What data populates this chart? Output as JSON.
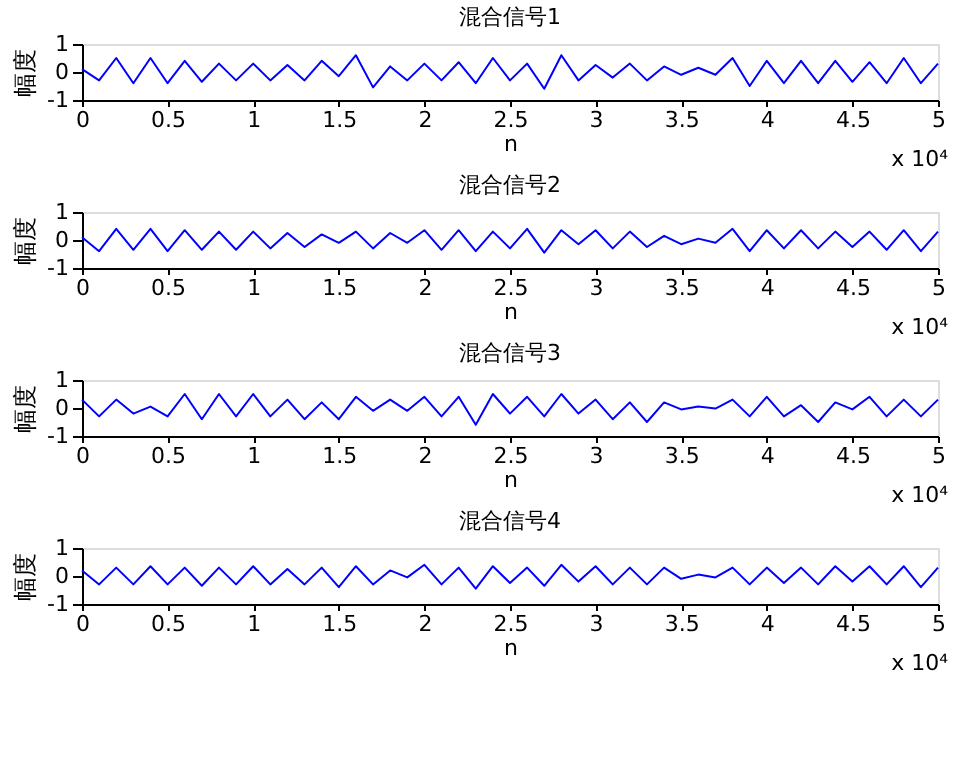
{
  "chart_data": [
    {
      "type": "line",
      "title": "混合信号1",
      "xlabel": "n",
      "ylabel": "幅度",
      "annotations": [
        "x 10⁴"
      ],
      "xlim": [
        0,
        5
      ],
      "xticks": [
        0,
        0.5,
        1,
        1.5,
        2,
        2.5,
        3,
        3.5,
        4,
        4.5,
        5
      ],
      "ylim": [
        -1,
        1
      ],
      "yticks": [
        -1,
        0,
        1
      ],
      "grid": false,
      "x": [
        0,
        0.1,
        0.2,
        0.3,
        0.4,
        0.5,
        0.6,
        0.7,
        0.8,
        0.9,
        1,
        1.1,
        1.2,
        1.3,
        1.4,
        1.5,
        1.6,
        1.7,
        1.8,
        1.9,
        2,
        2.1,
        2.2,
        2.3,
        2.4,
        2.5,
        2.6,
        2.7,
        2.8,
        2.9,
        3,
        3.1,
        3.2,
        3.3,
        3.4,
        3.5,
        3.6,
        3.7,
        3.8,
        3.9,
        4,
        4.1,
        4.2,
        4.3,
        4.4,
        4.5,
        4.6,
        4.7,
        4.8,
        4.9,
        5
      ],
      "series": [
        {
          "color": "#0000ff",
          "values": [
            0.1,
            -0.3,
            0.5,
            -0.4,
            0.5,
            -0.4,
            0.4,
            -0.35,
            0.3,
            -0.3,
            0.3,
            -0.3,
            0.25,
            -0.3,
            0.4,
            -0.15,
            0.6,
            -0.55,
            0.2,
            -0.3,
            0.3,
            -0.3,
            0.35,
            -0.4,
            0.5,
            -0.3,
            0.3,
            -0.6,
            0.6,
            -0.3,
            0.25,
            -0.2,
            0.3,
            -0.3,
            0.2,
            -0.1,
            0.15,
            -0.1,
            0.5,
            -0.5,
            0.4,
            -0.4,
            0.4,
            -0.4,
            0.4,
            -0.35,
            0.35,
            -0.4,
            0.5,
            -0.4,
            0.3
          ]
        }
      ]
    },
    {
      "type": "line",
      "title": "混合信号2",
      "xlabel": "n",
      "ylabel": "幅度",
      "annotations": [
        "x 10⁴"
      ],
      "xlim": [
        0,
        5
      ],
      "xticks": [
        0,
        0.5,
        1,
        1.5,
        2,
        2.5,
        3,
        3.5,
        4,
        4.5,
        5
      ],
      "ylim": [
        -1,
        1
      ],
      "yticks": [
        -1,
        0,
        1
      ],
      "grid": false,
      "x": [
        0,
        0.1,
        0.2,
        0.3,
        0.4,
        0.5,
        0.6,
        0.7,
        0.8,
        0.9,
        1,
        1.1,
        1.2,
        1.3,
        1.4,
        1.5,
        1.6,
        1.7,
        1.8,
        1.9,
        2,
        2.1,
        2.2,
        2.3,
        2.4,
        2.5,
        2.6,
        2.7,
        2.8,
        2.9,
        3,
        3.1,
        3.2,
        3.3,
        3.4,
        3.5,
        3.6,
        3.7,
        3.8,
        3.9,
        4,
        4.1,
        4.2,
        4.3,
        4.4,
        4.5,
        4.6,
        4.7,
        4.8,
        4.9,
        5
      ],
      "series": [
        {
          "color": "#0000ff",
          "values": [
            0.1,
            -0.4,
            0.4,
            -0.35,
            0.4,
            -0.4,
            0.35,
            -0.35,
            0.3,
            -0.35,
            0.3,
            -0.3,
            0.25,
            -0.25,
            0.2,
            -0.1,
            0.3,
            -0.3,
            0.25,
            -0.1,
            0.35,
            -0.35,
            0.35,
            -0.4,
            0.3,
            -0.3,
            0.4,
            -0.45,
            0.35,
            -0.15,
            0.35,
            -0.3,
            0.3,
            -0.25,
            0.15,
            -0.15,
            0.05,
            -0.1,
            0.4,
            -0.4,
            0.35,
            -0.3,
            0.35,
            -0.3,
            0.3,
            -0.25,
            0.3,
            -0.35,
            0.35,
            -0.4,
            0.3
          ]
        }
      ]
    },
    {
      "type": "line",
      "title": "混合信号3",
      "xlabel": "n",
      "ylabel": "幅度",
      "annotations": [
        "x 10⁴"
      ],
      "xlim": [
        0,
        5
      ],
      "xticks": [
        0,
        0.5,
        1,
        1.5,
        2,
        2.5,
        3,
        3.5,
        4,
        4.5,
        5
      ],
      "ylim": [
        -1,
        1
      ],
      "yticks": [
        -1,
        0,
        1
      ],
      "grid": false,
      "x": [
        0,
        0.1,
        0.2,
        0.3,
        0.4,
        0.5,
        0.6,
        0.7,
        0.8,
        0.9,
        1,
        1.1,
        1.2,
        1.3,
        1.4,
        1.5,
        1.6,
        1.7,
        1.8,
        1.9,
        2,
        2.1,
        2.2,
        2.3,
        2.4,
        2.5,
        2.6,
        2.7,
        2.8,
        2.9,
        3,
        3.1,
        3.2,
        3.3,
        3.4,
        3.5,
        3.6,
        3.7,
        3.8,
        3.9,
        4,
        4.1,
        4.2,
        4.3,
        4.4,
        4.5,
        4.6,
        4.7,
        4.8,
        4.9,
        5
      ],
      "series": [
        {
          "color": "#0000ff",
          "values": [
            0.3,
            -0.3,
            0.3,
            -0.2,
            0.05,
            -0.3,
            0.5,
            -0.4,
            0.5,
            -0.3,
            0.5,
            -0.3,
            0.3,
            -0.4,
            0.2,
            -0.4,
            0.4,
            -0.1,
            0.3,
            -0.1,
            0.4,
            -0.3,
            0.4,
            -0.6,
            0.5,
            -0.2,
            0.4,
            -0.3,
            0.5,
            -0.2,
            0.3,
            -0.4,
            0.2,
            -0.5,
            0.2,
            -0.05,
            0.05,
            -0.02,
            0.3,
            -0.3,
            0.4,
            -0.3,
            0.1,
            -0.5,
            0.2,
            -0.05,
            0.4,
            -0.3,
            0.3,
            -0.3,
            0.3
          ]
        }
      ]
    },
    {
      "type": "line",
      "title": "混合信号4",
      "xlabel": "n",
      "ylabel": "幅度",
      "annotations": [
        "x 10⁴"
      ],
      "xlim": [
        0,
        5
      ],
      "xticks": [
        0,
        0.5,
        1,
        1.5,
        2,
        2.5,
        3,
        3.5,
        4,
        4.5,
        5
      ],
      "ylim": [
        -1,
        1
      ],
      "yticks": [
        -1,
        0,
        1
      ],
      "grid": false,
      "x": [
        0,
        0.1,
        0.2,
        0.3,
        0.4,
        0.5,
        0.6,
        0.7,
        0.8,
        0.9,
        1,
        1.1,
        1.2,
        1.3,
        1.4,
        1.5,
        1.6,
        1.7,
        1.8,
        1.9,
        2,
        2.1,
        2.2,
        2.3,
        2.4,
        2.5,
        2.6,
        2.7,
        2.8,
        2.9,
        3,
        3.1,
        3.2,
        3.3,
        3.4,
        3.5,
        3.6,
        3.7,
        3.8,
        3.9,
        4,
        4.1,
        4.2,
        4.3,
        4.4,
        4.5,
        4.6,
        4.7,
        4.8,
        4.9,
        5
      ],
      "series": [
        {
          "color": "#0000ff",
          "values": [
            0.2,
            -0.3,
            0.3,
            -0.3,
            0.35,
            -0.3,
            0.3,
            -0.35,
            0.3,
            -0.3,
            0.35,
            -0.3,
            0.25,
            -0.3,
            0.3,
            -0.4,
            0.35,
            -0.3,
            0.2,
            -0.05,
            0.4,
            -0.3,
            0.3,
            -0.45,
            0.35,
            -0.25,
            0.3,
            -0.35,
            0.4,
            -0.2,
            0.35,
            -0.3,
            0.3,
            -0.3,
            0.3,
            -0.1,
            0.05,
            -0.05,
            0.3,
            -0.3,
            0.3,
            -0.25,
            0.3,
            -0.3,
            0.35,
            -0.2,
            0.35,
            -0.3,
            0.35,
            -0.4,
            0.3
          ]
        }
      ]
    }
  ]
}
